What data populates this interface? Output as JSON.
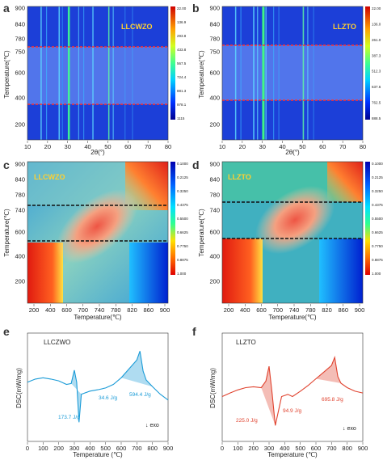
{
  "panels": {
    "a": {
      "letter": "a",
      "sample": "LLCWZO",
      "xlabel": "2θ(°)",
      "ylabel": "Temperature(℃)",
      "x_ticks": [
        "10",
        "20",
        "30",
        "40",
        "50",
        "60",
        "70",
        "80"
      ],
      "y_ticks": [
        "900",
        "840",
        "780",
        "750",
        "600",
        "400",
        "200"
      ],
      "colorbar": [
        "22.00",
        "136.9",
        "293.8",
        "433.8",
        "567.5",
        "724.4",
        "881.3",
        "978.1",
        "1115"
      ]
    },
    "b": {
      "letter": "b",
      "sample": "LLZTO",
      "xlabel": "2θ(°)",
      "ylabel": "Temperature(℃)",
      "x_ticks": [
        "10",
        "20",
        "30",
        "40",
        "50",
        "60",
        "70",
        "80"
      ],
      "y_ticks": [
        "900",
        "840",
        "780",
        "750",
        "600",
        "400",
        "200"
      ],
      "colorbar": [
        "22.00",
        "136.0",
        "261.0",
        "387.3",
        "512.3",
        "637.6",
        "762.5",
        "888.5"
      ]
    },
    "c": {
      "letter": "c",
      "sample": "LLCWZO",
      "xlabel": "Temperature(℃)",
      "ylabel": "Temperature(℃)",
      "x_ticks": [
        "200",
        "400",
        "600",
        "700",
        "740",
        "780",
        "820",
        "860",
        "900"
      ],
      "y_ticks": [
        "900",
        "840",
        "780",
        "740",
        "600",
        "400",
        "200"
      ],
      "colorbar": [
        "0.1000",
        "0.2125",
        "0.3250",
        "0.4375",
        "0.5500",
        "0.6625",
        "0.7750",
        "0.8875",
        "1.000"
      ]
    },
    "d": {
      "letter": "d",
      "sample": "LLZTO",
      "xlabel": "Temperature(℃)",
      "ylabel": "Temperature(℃)",
      "x_ticks": [
        "200",
        "400",
        "600",
        "700",
        "740",
        "780",
        "820",
        "860",
        "900"
      ],
      "y_ticks": [
        "900",
        "840",
        "780",
        "740",
        "600",
        "400",
        "200"
      ],
      "colorbar": [
        "0.1000",
        "0.2125",
        "0.3250",
        "0.4375",
        "0.5500",
        "0.6625",
        "0.7750",
        "0.8875",
        "1.000"
      ]
    },
    "e": {
      "letter": "e",
      "sample": "LLCZWO",
      "xlabel": "Temperature (℃)",
      "ylabel": "DSC(mW/mg)",
      "x_ticks": [
        "0",
        "100",
        "200",
        "300",
        "400",
        "500",
        "600",
        "700",
        "800",
        "900"
      ],
      "annotations": [
        "173.7 J/g",
        "34.6 J/g",
        "594.4 J/g"
      ],
      "exo": "↓ exo",
      "color": "#1a9bd7"
    },
    "f": {
      "letter": "f",
      "sample": "LLZTO",
      "xlabel": "Temperature (℃)",
      "ylabel": "DSC(mW/mg)",
      "x_ticks": [
        "0",
        "100",
        "200",
        "300",
        "400",
        "500",
        "600",
        "700",
        "800",
        "900"
      ],
      "annotations": [
        "225.0 J/g",
        "94.9 J/g",
        "695.8 J/g"
      ],
      "exo": "↓ exo",
      "color": "#e0422e"
    }
  },
  "chart_data": [
    {
      "type": "line",
      "title": "",
      "xlabel": "Temperature (℃)",
      "ylabel": "DSC(mW/mg)",
      "series": [
        {
          "name": "LLCZWO",
          "x": [
            0,
            50,
            100,
            150,
            200,
            250,
            280,
            300,
            315,
            330,
            345,
            400,
            450,
            500,
            550,
            600,
            650,
            700,
            720,
            740,
            760,
            800,
            850,
            900
          ],
          "y": [
            0.35,
            0.42,
            0.45,
            0.42,
            0.38,
            0.3,
            0.32,
            0.62,
            0.35,
            -0.55,
            0.08,
            0.15,
            0.18,
            0.22,
            0.3,
            0.45,
            0.65,
            0.85,
            1.05,
            0.6,
            0.4,
            0.25,
            0.08,
            -0.05
          ]
        }
      ]
    },
    {
      "type": "line",
      "title": "",
      "xlabel": "Temperature (℃)",
      "ylabel": "DSC(mW/mg)",
      "series": [
        {
          "name": "LLZTO",
          "x": [
            0,
            50,
            100,
            150,
            200,
            250,
            280,
            300,
            320,
            340,
            380,
            420,
            450,
            500,
            550,
            600,
            650,
            700,
            720,
            740,
            760,
            800,
            850,
            900
          ],
          "y": [
            0.1,
            0.18,
            0.25,
            0.3,
            0.32,
            0.3,
            0.45,
            0.78,
            0.15,
            -0.55,
            0.1,
            0.15,
            0.1,
            0.22,
            0.35,
            0.5,
            0.65,
            0.8,
            0.98,
            0.55,
            0.4,
            0.3,
            0.22,
            0.18
          ]
        }
      ]
    }
  ]
}
